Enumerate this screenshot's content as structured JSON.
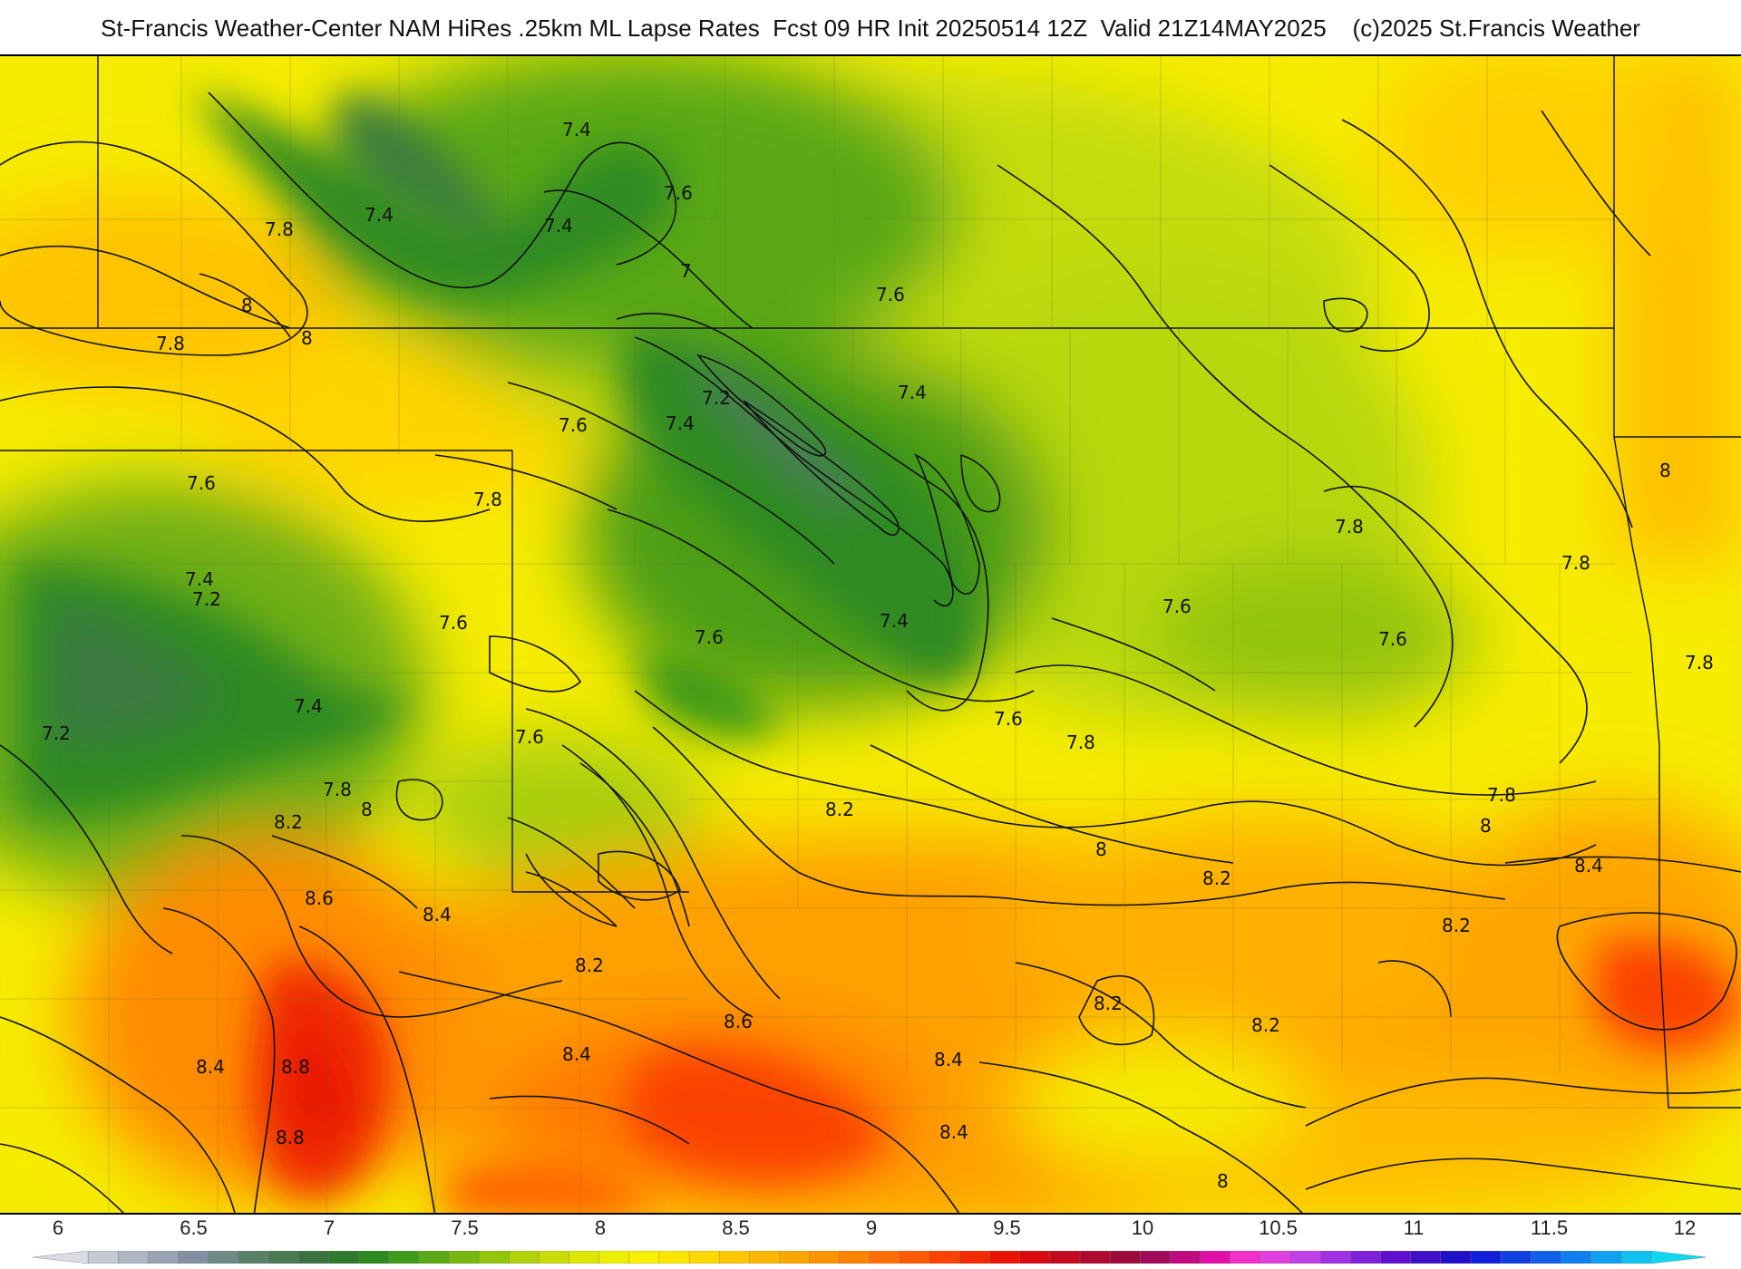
{
  "title": "St-Francis Weather-Center NAM HiRes .25km ML Lapse Rates  Fcst 09 HR Init 20250514 12Z  Valid 21Z14MAY2025    (c)2025 St.Francis Weather",
  "map": {
    "field": "ML Lapse Rates",
    "contour_labels": [
      {
        "value": "7.4",
        "id": "l1"
      },
      {
        "value": "7.6",
        "id": "l2"
      },
      {
        "value": "7.4",
        "id": "l3"
      },
      {
        "value": "7.4",
        "id": "l4"
      },
      {
        "value": "7.8",
        "id": "l5"
      },
      {
        "value": "8",
        "id": "l6"
      },
      {
        "value": "7.8",
        "id": "l7"
      },
      {
        "value": "8",
        "id": "l8"
      },
      {
        "value": "7",
        "id": "l9"
      },
      {
        "value": "7.6",
        "id": "l10"
      },
      {
        "value": "7.2",
        "id": "l11"
      },
      {
        "value": "7.4",
        "id": "l12"
      },
      {
        "value": "7.6",
        "id": "l13"
      },
      {
        "value": "7.4",
        "id": "l14"
      },
      {
        "value": "7.6",
        "id": "l15"
      },
      {
        "value": "7.8",
        "id": "l16"
      },
      {
        "value": "7.4",
        "id": "l17"
      },
      {
        "value": "7.2",
        "id": "l18"
      },
      {
        "value": "7.6",
        "id": "l19"
      },
      {
        "value": "7.6",
        "id": "l20"
      },
      {
        "value": "7.4",
        "id": "l21"
      },
      {
        "value": "7.2",
        "id": "l22"
      },
      {
        "value": "7.6",
        "id": "l23"
      },
      {
        "value": "7.4",
        "id": "l24"
      },
      {
        "value": "7.6",
        "id": "l25"
      },
      {
        "value": "7.8",
        "id": "l26"
      },
      {
        "value": "7.8",
        "id": "l27"
      },
      {
        "value": "8",
        "id": "l28"
      },
      {
        "value": "7.6",
        "id": "l29"
      },
      {
        "value": "7.8",
        "id": "l30"
      },
      {
        "value": "7.6",
        "id": "l31"
      },
      {
        "value": "8",
        "id": "l32"
      },
      {
        "value": "7.8",
        "id": "l33"
      },
      {
        "value": "7.8",
        "id": "l34"
      },
      {
        "value": "8.2",
        "id": "l35"
      },
      {
        "value": "8",
        "id": "l36"
      },
      {
        "value": "8.2",
        "id": "l37"
      },
      {
        "value": "8.2",
        "id": "l38"
      },
      {
        "value": "7.8",
        "id": "l39"
      },
      {
        "value": "8",
        "id": "l40"
      },
      {
        "value": "8.4",
        "id": "l41"
      },
      {
        "value": "8.2",
        "id": "l42"
      },
      {
        "value": "8.6",
        "id": "l43"
      },
      {
        "value": "8.4",
        "id": "l44"
      },
      {
        "value": "8.2",
        "id": "l45"
      },
      {
        "value": "8.6",
        "id": "l46"
      },
      {
        "value": "8.2",
        "id": "l47"
      },
      {
        "value": "8.4",
        "id": "l48"
      },
      {
        "value": "8.8",
        "id": "l49"
      },
      {
        "value": "8.4",
        "id": "l50"
      },
      {
        "value": "8.8",
        "id": "l51"
      },
      {
        "value": "8.4",
        "id": "l52"
      },
      {
        "value": "8",
        "id": "l53"
      },
      {
        "value": "8.4",
        "id": "l54"
      },
      {
        "value": "8.2",
        "id": "l55"
      }
    ]
  },
  "legend": {
    "ticks": [
      "6",
      "6.5",
      "7",
      "7.5",
      "8",
      "8.5",
      "9",
      "9.5",
      "10",
      "10.5",
      "11",
      "11.5",
      "12"
    ],
    "colors": [
      "#d9dde3",
      "#c4cad3",
      "#aeb6c2",
      "#98a2b2",
      "#828fa2",
      "#6d8c86",
      "#5b8068",
      "#4a7a52",
      "#3a7340",
      "#2f7a2c",
      "#2c8a20",
      "#3e9a18",
      "#5aa816",
      "#78b610",
      "#94c40c",
      "#b0d20a",
      "#c8de06",
      "#dce804",
      "#eef000",
      "#f8f000",
      "#fde700",
      "#fed800",
      "#ffc800",
      "#ffb800",
      "#ffa600",
      "#ff9400",
      "#ff8200",
      "#ff6e00",
      "#ff5a00",
      "#fb4200",
      "#f22a00",
      "#e81400",
      "#d80a10",
      "#c40a20",
      "#b00a30",
      "#9c0a3c",
      "#a00a5a",
      "#c00a80",
      "#e010a8",
      "#f030c8",
      "#e040e0",
      "#c040e8",
      "#a030e0",
      "#8020d8",
      "#6010d0",
      "#4010c8",
      "#2010c8",
      "#1020d8",
      "#1040e0",
      "#1060e8",
      "#1080ee",
      "#10a0f0",
      "#10c0f0",
      "#10d8f0"
    ]
  }
}
